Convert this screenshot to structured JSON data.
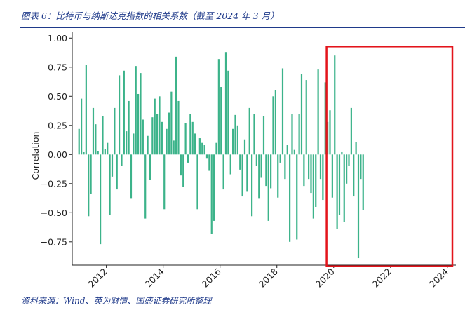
{
  "caption": "图表 6：比特币与纳斯达克指数的相关系数（截至 2024 年 3 月）",
  "source": "资料来源：Wind、英为财情、国盛证券研究所整理",
  "chart_data": {
    "type": "bar",
    "title": "",
    "xlabel": "",
    "ylabel": "Correlation",
    "xlim": [
      2010.8,
      2024.3
    ],
    "ylim": [
      -0.95,
      1.05
    ],
    "yticks": [
      -0.75,
      -0.5,
      -0.25,
      0.0,
      0.25,
      0.5,
      0.75,
      1.0
    ],
    "ytick_labels": [
      "−0.75",
      "−0.50",
      "−0.25",
      "0.00",
      "0.25",
      "0.50",
      "0.75",
      "1.00"
    ],
    "xticks": [
      2012,
      2014,
      2016,
      2018,
      2020,
      2022,
      2024
    ],
    "xtick_labels": [
      "2012",
      "2014",
      "2016",
      "2018",
      "2020",
      "2022",
      "2024"
    ],
    "bar_color": "#3cb38a",
    "highlight": {
      "x_range": [
        2019.75,
        2024.35
      ],
      "y_range": [
        -0.93,
        1.0
      ],
      "color": "#e3141b"
    },
    "start_x": 2011.04,
    "step": 0.0833,
    "values": [
      0.22,
      0.48,
      0.02,
      0.77,
      -0.53,
      -0.34,
      0.4,
      0.26,
      0.03,
      -0.77,
      0.33,
      0.05,
      0.1,
      -0.52,
      -0.19,
      0.4,
      -0.3,
      0.68,
      -0.1,
      0.72,
      0.2,
      0.46,
      -0.38,
      0.18,
      0.76,
      0.52,
      0.7,
      0.3,
      -0.55,
      0.16,
      -0.22,
      0.32,
      0.48,
      0.35,
      0.5,
      0.28,
      -0.47,
      0.22,
      0.36,
      0.54,
      0.12,
      0.84,
      0.46,
      -0.18,
      -0.28,
      0.27,
      -0.07,
      0.35,
      0.28,
      0.18,
      -0.47,
      0.14,
      0.1,
      0.08,
      -0.03,
      -0.14,
      -0.68,
      -0.57,
      0.1,
      0.82,
      0.58,
      -0.3,
      0.88,
      0.72,
      -0.17,
      0.22,
      0.34,
      0.25,
      -0.13,
      -0.36,
      0.13,
      -0.32,
      0.4,
      -0.53,
      0.35,
      -0.1,
      -0.38,
      -0.2,
      0.33,
      -0.27,
      -0.57,
      -0.29,
      0.5,
      0.55,
      -0.37,
      -0.07,
      0.74,
      -0.21,
      0.08,
      -0.75,
      0.35,
      0.04,
      -0.73,
      0.35,
      0.69,
      -0.27,
      0.64,
      -0.21,
      -0.33,
      -0.55,
      -0.45,
      0.73,
      -0.21,
      -0.39,
      0.62,
      0.28,
      0.38,
      -0.37,
      0.85,
      -0.64,
      -0.52,
      0.02,
      -0.58,
      -0.25,
      -0.1,
      0.4,
      -0.36,
      0.11,
      -0.89,
      -0.21,
      -0.48
    ]
  }
}
